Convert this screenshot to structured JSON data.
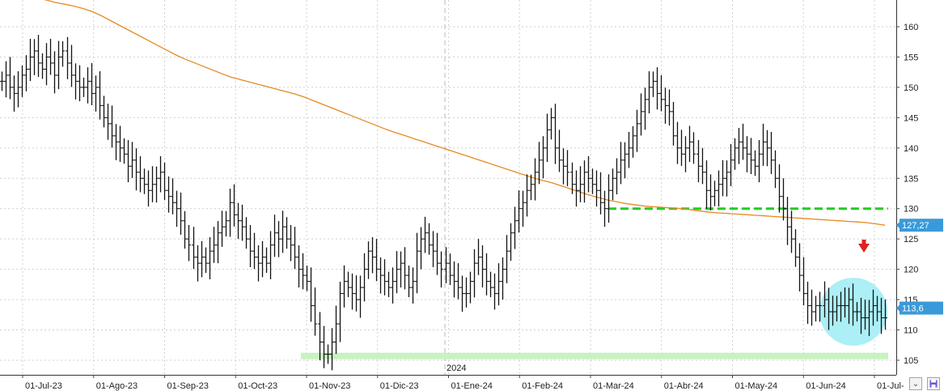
{
  "chart_data": {
    "type": "ohlc",
    "x_tick_labels": [
      "01-Jul-23",
      "01-Ago-23",
      "01-Sep-23",
      "01-Oct-23",
      "01-Nov-23",
      "01-Dic-23",
      "01-Ene-24",
      "01-Feb-24",
      "01-Mar-24",
      "01-Abr-24",
      "01-May-24",
      "01-Jun-24",
      "01-Jul-"
    ],
    "year_label": "2024",
    "y_ticks": [
      105,
      110,
      115,
      120,
      125,
      130,
      135,
      140,
      145,
      150,
      155,
      160
    ],
    "ylim": [
      102.6,
      164.4
    ],
    "grid": true,
    "price_close": [
      151,
      152,
      150,
      149,
      150,
      152,
      153,
      155,
      156,
      154,
      153,
      155,
      154,
      152,
      155,
      156,
      154,
      152,
      151,
      150,
      150,
      151,
      149,
      150,
      147,
      145,
      144,
      142,
      141,
      140,
      139,
      137,
      138,
      136,
      135,
      134,
      133,
      134,
      135,
      136,
      133,
      132,
      131,
      130,
      128,
      125,
      124,
      122,
      121,
      122,
      121,
      123,
      124,
      126,
      127,
      128,
      131,
      129,
      128,
      127,
      125,
      123,
      122,
      121,
      122,
      121,
      124,
      126,
      125,
      127,
      125,
      124,
      122,
      120,
      119,
      118,
      114,
      111,
      108,
      106,
      106,
      108,
      111,
      116,
      118,
      117,
      116,
      115,
      117,
      120,
      123,
      122,
      120,
      119,
      118,
      117,
      118,
      120,
      121,
      119,
      117,
      118,
      123,
      125,
      126,
      124,
      123,
      121,
      120,
      121,
      119,
      118,
      117,
      116,
      116,
      118,
      121,
      122,
      120,
      118,
      117,
      116,
      118,
      120,
      123,
      126,
      128,
      130,
      131,
      133,
      134,
      136,
      138,
      140,
      143,
      145,
      140,
      138,
      137,
      136,
      134,
      133,
      134,
      136,
      135,
      134,
      133,
      131,
      130,
      133,
      135,
      136,
      138,
      139,
      140,
      142,
      144,
      146,
      148,
      150,
      151,
      149,
      148,
      147,
      146,
      142,
      140,
      139,
      140,
      141,
      139,
      137,
      136,
      133,
      132,
      133,
      134,
      135,
      136,
      138,
      140,
      141,
      140,
      139,
      138,
      137,
      139,
      141,
      140,
      138,
      135,
      132,
      130,
      127,
      125,
      122,
      119,
      116,
      114,
      113,
      114,
      114,
      115,
      113,
      113,
      114,
      114,
      114,
      115,
      113,
      113,
      112,
      112,
      113,
      114,
      113,
      112,
      112
    ],
    "moving_average": {
      "color": "#e58a24",
      "values": [
        166.4,
        166,
        165.6,
        165.2,
        164.8,
        164.4,
        164,
        163.7,
        163.4,
        163,
        162.5,
        161.8,
        161,
        160.2,
        159.4,
        158.6,
        157.8,
        157,
        156.2,
        155.4,
        154.7,
        154.1,
        153.5,
        152.9,
        152.3,
        151.7,
        151.3,
        150.9,
        150.5,
        150.1,
        149.7,
        149.3,
        148.9,
        148.4,
        147.8,
        147.2,
        146.6,
        146,
        145.4,
        144.8,
        144.2,
        143.6,
        143,
        142.5,
        142,
        141.5,
        141,
        140.5,
        140,
        139.5,
        139,
        138.5,
        138,
        137.5,
        137,
        136.5,
        136,
        135.5,
        135,
        134.6,
        134.2,
        133.7,
        133.2,
        132.7,
        132.2,
        131.8,
        131.4,
        131.1,
        130.8,
        130.6,
        130.4,
        130.3,
        130.2,
        130.1,
        130,
        129.8,
        129.6,
        129.4,
        129.3,
        129.2,
        129.1,
        129,
        128.9,
        128.8,
        128.7,
        128.6,
        128.5,
        128.4,
        128.3,
        128.2,
        128.1,
        128,
        127.9,
        127.8,
        127.7,
        127.5,
        127.27
      ]
    },
    "support_line": {
      "value": 130,
      "color": "#22cc22"
    },
    "floor_band": {
      "value": 105.7,
      "color": "#c8f2c0"
    },
    "highlight_circle": {
      "color": "#a8eef5",
      "center_value": 113
    },
    "annotation_arrow": {
      "direction": "down",
      "color": "#e02020"
    },
    "last_price": {
      "label": "113,6",
      "value": 113.6,
      "color": "#3a9ad9"
    },
    "ma_last": {
      "label": "127,27",
      "value": 127.27,
      "color": "#3a9ad9"
    }
  },
  "ui": {
    "collapse_icon": "double-chevron-down-icon",
    "save_icon": "floppy-disk-icon"
  }
}
